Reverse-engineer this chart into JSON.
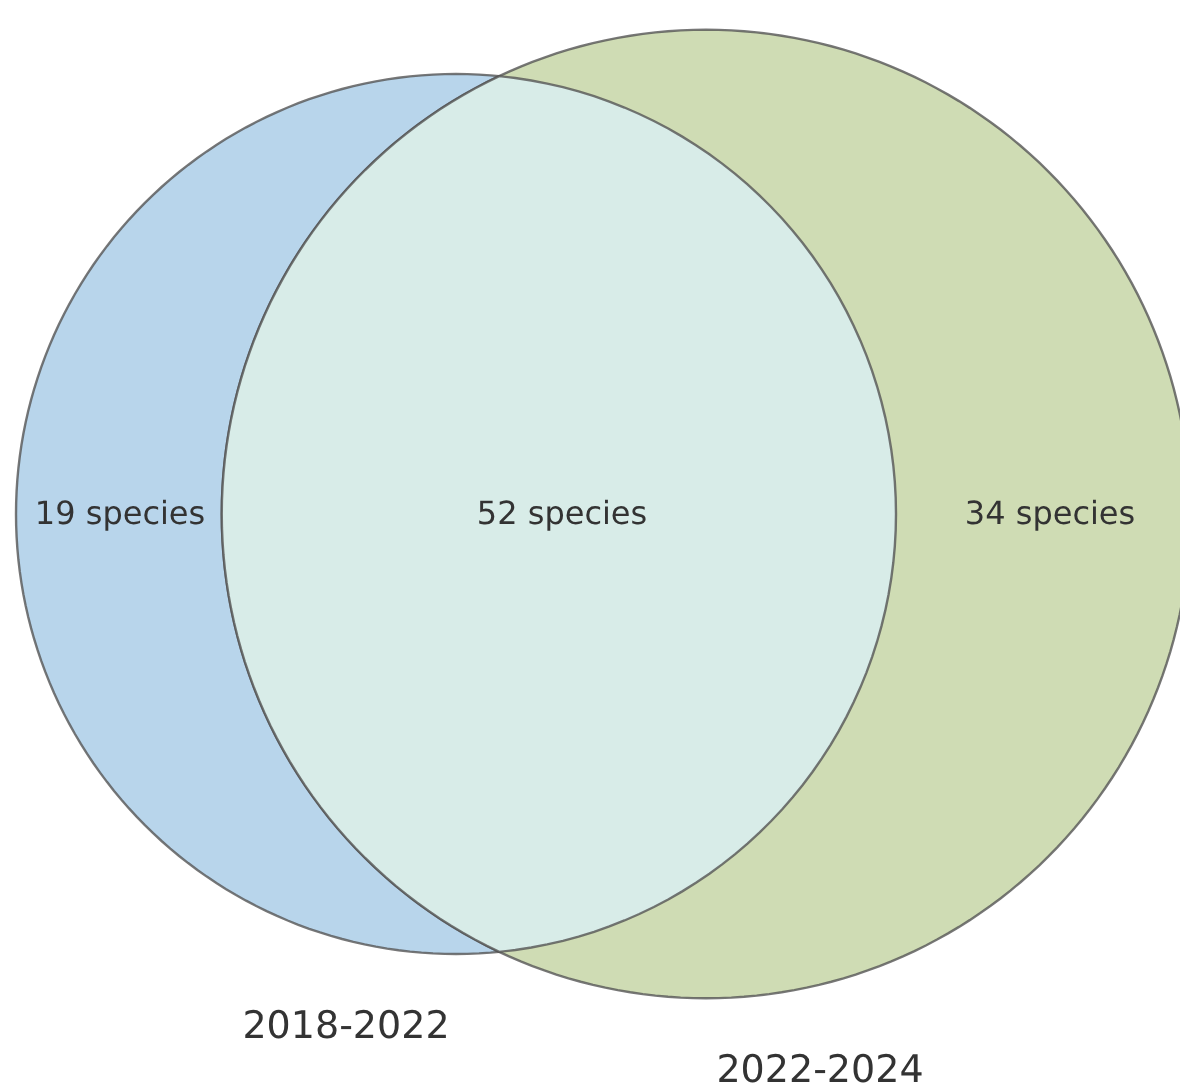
{
  "chart_data": {
    "type": "other",
    "categories": [
      null,
      null,
      null
    ],
    "values": [
      19,
      52,
      34
    ],
    "value_labels": [
      "19 species",
      "52 species",
      "34 species"
    ],
    "colors": [
      "#b8d5eb",
      "#d8ece8",
      "#cfdcb4"
    ],
    "annotations": [
      "2018-2022",
      "2022-2024"
    ]
  }
}
